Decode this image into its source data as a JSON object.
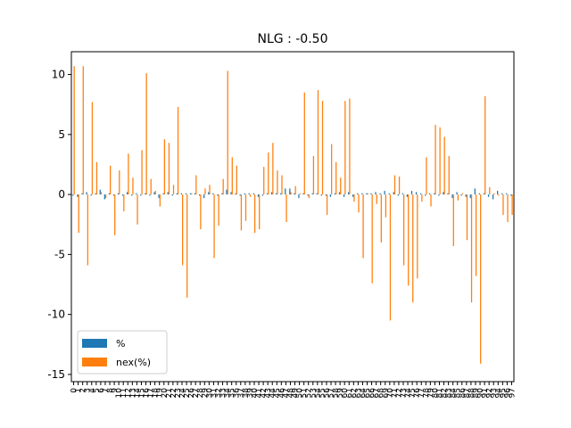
{
  "chart_data": {
    "type": "bar",
    "title": "NLG : -0.50",
    "xlabel": "",
    "ylabel": "",
    "ylim": [
      -15.6,
      11.9
    ],
    "yticks": [
      -15,
      -10,
      -5,
      0,
      5,
      10
    ],
    "grid": false,
    "legend_position": "lower-left",
    "categories": [
      "0",
      "1",
      "2",
      "3",
      "4",
      "5",
      "6",
      "7",
      "8",
      "9",
      "10",
      "11",
      "12",
      "13",
      "14",
      "15",
      "16",
      "17",
      "18",
      "19",
      "20",
      "21",
      "22",
      "23",
      "24",
      "25",
      "26",
      "27",
      "28",
      "29",
      "30",
      "31",
      "32",
      "33",
      "34",
      "35",
      "36",
      "37",
      "38",
      "39",
      "40",
      "41",
      "42",
      "43",
      "44",
      "45",
      "46",
      "47",
      "48",
      "49",
      "50",
      "51",
      "52",
      "53",
      "54",
      "55",
      "56",
      "57",
      "58",
      "59",
      "60",
      "61",
      "62",
      "63",
      "64",
      "65",
      "66",
      "67",
      "68",
      "69",
      "70",
      "71",
      "72",
      "73",
      "74",
      "75",
      "76",
      "77",
      "78",
      "79",
      "80",
      "81",
      "82",
      "83",
      "84",
      "85",
      "86",
      "87",
      "88",
      "89",
      "90",
      "91",
      "92",
      "93",
      "94",
      "95",
      "96",
      "97"
    ],
    "series": [
      {
        "name": "%",
        "color": "#1f77b4",
        "values": [
          -0.1,
          -0.2,
          0.1,
          0.2,
          -0.1,
          0.1,
          0.4,
          -0.4,
          0.1,
          -0.1,
          0.1,
          -0.1,
          0.2,
          -0.1,
          0.1,
          -0.1,
          0.1,
          -0.1,
          0.2,
          -0.3,
          0.1,
          0.2,
          -0.1,
          0.1,
          0.1,
          0.1,
          0.1,
          0.1,
          -0.1,
          -0.3,
          0.2,
          0.1,
          -0.1,
          0.1,
          0.4,
          0.2,
          0.1,
          -0.1,
          0.1,
          0.1,
          0.1,
          -0.2,
          -0.1,
          0.1,
          0.2,
          0.1,
          0.1,
          0.5,
          0.5,
          0.1,
          -0.3,
          0.1,
          -0.1,
          0.1,
          0.1,
          -0.1,
          -0.1,
          -0.2,
          0.1,
          0.2,
          -0.2,
          0.2,
          -0.2,
          0.1,
          0.1,
          0.1,
          0.1,
          0.2,
          0.1,
          0.3,
          0.1,
          0.2,
          -0.1,
          0.1,
          -0.2,
          0.3,
          0.2,
          0.1,
          -0.1,
          0.1,
          0.1,
          -0.1,
          0.2,
          0.1,
          -0.3,
          0.2,
          -0.1,
          -0.2,
          -0.3,
          0.5,
          0.1,
          0.1,
          -0.2,
          -0.4,
          0.3,
          0.1,
          0.1,
          -0.1
        ]
      },
      {
        "name": "nex(%)",
        "color": "#ff7f0e",
        "values": [
          10.7,
          -3.2,
          10.7,
          -5.9,
          7.7,
          2.7,
          0.2,
          -0.3,
          2.4,
          -3.4,
          2.0,
          -1.4,
          3.4,
          1.4,
          -2.5,
          3.7,
          10.1,
          1.3,
          0.3,
          -1.0,
          4.6,
          4.3,
          0.8,
          7.3,
          -5.9,
          -8.6,
          0.1,
          1.6,
          -2.9,
          0.5,
          0.8,
          -5.3,
          -2.6,
          1.3,
          10.3,
          3.1,
          2.4,
          -3.0,
          -2.2,
          -0.2,
          -3.2,
          -2.9,
          2.3,
          3.5,
          4.3,
          2.0,
          1.6,
          -2.3,
          0.2,
          0.7,
          0.1,
          8.5,
          -0.3,
          3.2,
          8.7,
          7.8,
          -1.7,
          4.2,
          2.7,
          1.4,
          7.8,
          8.0,
          -0.6,
          -1.5,
          -5.3,
          0.1,
          -7.4,
          -0.8,
          -4.0,
          -1.9,
          -10.5,
          1.6,
          1.5,
          -5.9,
          -7.6,
          -9.0,
          -7.0,
          -0.6,
          3.1,
          -1.0,
          5.8,
          5.6,
          4.8,
          3.2,
          -4.3,
          -0.5,
          0.1,
          -3.8,
          -9.0,
          -6.8,
          -14.1,
          8.2,
          0.6,
          0.1,
          -0.1,
          -1.7,
          -2.3,
          -1.7
        ]
      }
    ]
  }
}
